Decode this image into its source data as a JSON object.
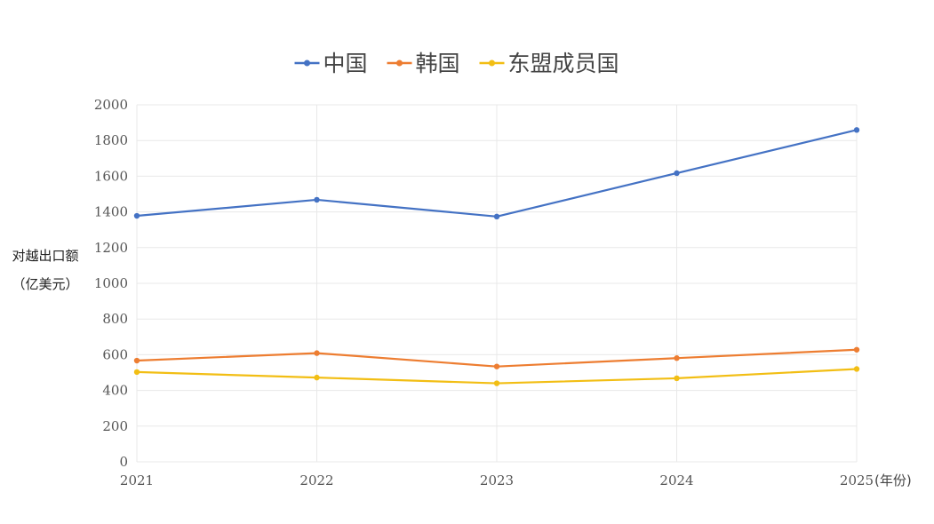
{
  "chart_data": {
    "type": "line",
    "title": "",
    "xlabel": "(年份)",
    "ylabel_line1": "对越出口额",
    "ylabel_line2": "（亿美元）",
    "categories": [
      "2021",
      "2022",
      "2023",
      "2024",
      "2025"
    ],
    "ylim": [
      0,
      2000
    ],
    "yticks": [
      0,
      200,
      400,
      600,
      800,
      1000,
      1200,
      1400,
      1600,
      1800,
      2000
    ],
    "grid": true,
    "legend_position": "top-center",
    "series": [
      {
        "name": "中国",
        "color": "#4472C4",
        "values": [
          1378,
          1468,
          1374,
          1617,
          1859
        ]
      },
      {
        "name": "韩国",
        "color": "#ED7D31",
        "values": [
          567,
          609,
          534,
          581,
          628
        ]
      },
      {
        "name": "东盟成员国",
        "color": "#F2BE14",
        "values": [
          503,
          472,
          440,
          468,
          520
        ]
      }
    ]
  }
}
